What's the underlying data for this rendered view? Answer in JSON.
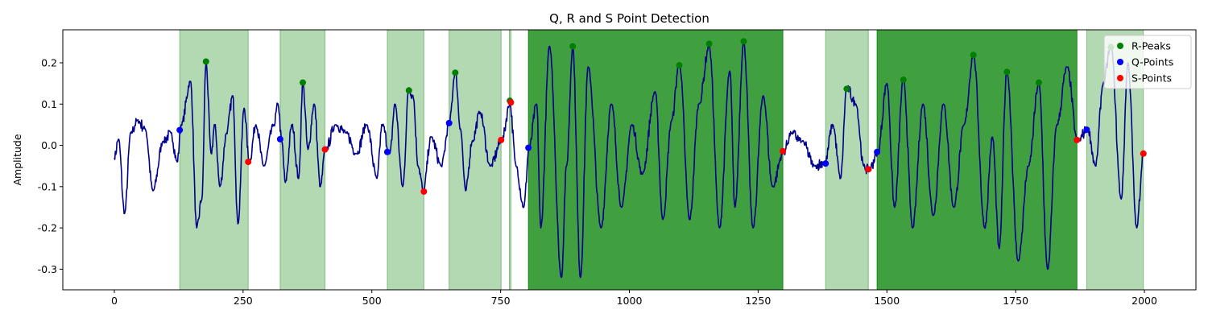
{
  "chart_data": {
    "type": "line",
    "title": "Q, R and S Point Detection",
    "xlabel": "",
    "ylabel": "Amplitude",
    "xlim": [
      -100,
      2100
    ],
    "ylim": [
      -0.35,
      0.28
    ],
    "xticks": [
      0,
      250,
      500,
      750,
      1000,
      1250,
      1500,
      1750,
      2000
    ],
    "yticks": [
      -0.3,
      -0.2,
      -0.1,
      0.0,
      0.1,
      0.2
    ],
    "grid": false,
    "legend_position": "top-right",
    "colors": {
      "signal": "#00008b",
      "r_peaks": "#008000",
      "q_points": "#0000ff",
      "s_points": "#ff0000",
      "region": "#008000"
    },
    "shaded_regions": [
      {
        "start": 127,
        "end": 260,
        "opacity": 0.3
      },
      {
        "start": 322,
        "end": 409,
        "opacity": 0.3
      },
      {
        "start": 530,
        "end": 601,
        "opacity": 0.3
      },
      {
        "start": 650,
        "end": 751,
        "opacity": 0.3
      },
      {
        "start": 767,
        "end": 770,
        "opacity": 0.3
      },
      {
        "start": 804,
        "end": 1298,
        "opacity": 0.75
      },
      {
        "start": 1381,
        "end": 1464,
        "opacity": 0.3
      },
      {
        "start": 1481,
        "end": 1869,
        "opacity": 0.75
      },
      {
        "start": 1888,
        "end": 1998,
        "opacity": 0.3
      }
    ],
    "signal_keypoints": [
      [
        0,
        -0.03
      ],
      [
        8,
        0.015
      ],
      [
        20,
        -0.165
      ],
      [
        32,
        0.03
      ],
      [
        45,
        0.06
      ],
      [
        60,
        0.04
      ],
      [
        75,
        -0.11
      ],
      [
        95,
        0.01
      ],
      [
        110,
        0.03
      ],
      [
        122,
        -0.04
      ],
      [
        130,
        0.05
      ],
      [
        148,
        0.155
      ],
      [
        160,
        -0.2
      ],
      [
        170,
        -0.13
      ],
      [
        178,
        0.2
      ],
      [
        188,
        -0.02
      ],
      [
        195,
        0.05
      ],
      [
        205,
        -0.1
      ],
      [
        218,
        0.03
      ],
      [
        230,
        0.12
      ],
      [
        240,
        -0.19
      ],
      [
        252,
        0.09
      ],
      [
        262,
        -0.04
      ],
      [
        275,
        0.05
      ],
      [
        290,
        -0.05
      ],
      [
        310,
        0.05
      ],
      [
        318,
        0.1
      ],
      [
        325,
        0.01
      ],
      [
        332,
        -0.09
      ],
      [
        345,
        0.05
      ],
      [
        358,
        -0.08
      ],
      [
        366,
        0.15
      ],
      [
        376,
        -0.01
      ],
      [
        388,
        0.1
      ],
      [
        400,
        -0.1
      ],
      [
        410,
        -0.01
      ],
      [
        430,
        0.05
      ],
      [
        450,
        0.03
      ],
      [
        470,
        -0.02
      ],
      [
        490,
        0.05
      ],
      [
        510,
        -0.08
      ],
      [
        520,
        0.05
      ],
      [
        535,
        -0.02
      ],
      [
        545,
        0.1
      ],
      [
        560,
        -0.1
      ],
      [
        572,
        0.14
      ],
      [
        580,
        0.12
      ],
      [
        590,
        -0.05
      ],
      [
        600,
        -0.11
      ],
      [
        615,
        0.02
      ],
      [
        635,
        -0.05
      ],
      [
        650,
        0.05
      ],
      [
        662,
        0.18
      ],
      [
        672,
        0.04
      ],
      [
        682,
        -0.11
      ],
      [
        695,
        0.01
      ],
      [
        710,
        0.08
      ],
      [
        730,
        -0.05
      ],
      [
        752,
        0.01
      ],
      [
        768,
        0.1
      ],
      [
        780,
        -0.05
      ],
      [
        795,
        -0.15
      ],
      [
        805,
        -0.01
      ],
      [
        820,
        0.1
      ],
      [
        828,
        -0.2
      ],
      [
        845,
        0.24
      ],
      [
        868,
        -0.32
      ],
      [
        878,
        -0.05
      ],
      [
        890,
        0.24
      ],
      [
        905,
        -0.32
      ],
      [
        920,
        0.19
      ],
      [
        945,
        -0.2
      ],
      [
        965,
        0.1
      ],
      [
        985,
        -0.15
      ],
      [
        1005,
        0.05
      ],
      [
        1025,
        -0.07
      ],
      [
        1050,
        0.13
      ],
      [
        1065,
        -0.18
      ],
      [
        1082,
        0.06
      ],
      [
        1097,
        0.2
      ],
      [
        1117,
        -0.18
      ],
      [
        1135,
        0.1
      ],
      [
        1155,
        0.24
      ],
      [
        1175,
        -0.2
      ],
      [
        1195,
        0.18
      ],
      [
        1205,
        -0.15
      ],
      [
        1222,
        0.25
      ],
      [
        1240,
        -0.2
      ],
      [
        1260,
        0.12
      ],
      [
        1278,
        -0.1
      ],
      [
        1298,
        -0.02
      ],
      [
        1315,
        0.03
      ],
      [
        1335,
        0.01
      ],
      [
        1360,
        -0.05
      ],
      [
        1380,
        -0.04
      ],
      [
        1395,
        0.05
      ],
      [
        1410,
        -0.08
      ],
      [
        1422,
        0.14
      ],
      [
        1440,
        0.1
      ],
      [
        1455,
        -0.05
      ],
      [
        1465,
        -0.06
      ],
      [
        1482,
        -0.02
      ],
      [
        1500,
        0.15
      ],
      [
        1515,
        -0.15
      ],
      [
        1532,
        0.16
      ],
      [
        1550,
        -0.2
      ],
      [
        1570,
        0.1
      ],
      [
        1590,
        -0.17
      ],
      [
        1610,
        0.1
      ],
      [
        1630,
        -0.15
      ],
      [
        1650,
        0.05
      ],
      [
        1668,
        0.22
      ],
      [
        1690,
        -0.2
      ],
      [
        1705,
        0.02
      ],
      [
        1718,
        -0.25
      ],
      [
        1733,
        0.18
      ],
      [
        1755,
        -0.28
      ],
      [
        1775,
        -0.05
      ],
      [
        1795,
        0.15
      ],
      [
        1812,
        -0.3
      ],
      [
        1830,
        0.05
      ],
      [
        1850,
        0.19
      ],
      [
        1870,
        0.01
      ],
      [
        1890,
        0.04
      ],
      [
        1905,
        -0.05
      ],
      [
        1920,
        0.15
      ],
      [
        1935,
        0.24
      ],
      [
        1955,
        -0.13
      ],
      [
        1968,
        0.2
      ],
      [
        1985,
        -0.2
      ],
      [
        1998,
        -0.02
      ]
    ],
    "series": [
      {
        "name": "R-Peaks",
        "points": [
          [
            178,
            0.203
          ],
          [
            366,
            0.152
          ],
          [
            572,
            0.133
          ],
          [
            662,
            0.176
          ],
          [
            768,
            0.108
          ],
          [
            890,
            0.24
          ],
          [
            1097,
            0.194
          ],
          [
            1155,
            0.246
          ],
          [
            1222,
            0.252
          ],
          [
            1422,
            0.137
          ],
          [
            1532,
            0.159
          ],
          [
            1668,
            0.219
          ],
          [
            1733,
            0.178
          ],
          [
            1795,
            0.152
          ],
          [
            1935,
            0.238
          ]
        ]
      },
      {
        "name": "Q-Points",
        "points": [
          [
            127,
            0.037
          ],
          [
            322,
            0.015
          ],
          [
            530,
            -0.016
          ],
          [
            650,
            0.054
          ],
          [
            804,
            -0.006
          ],
          [
            1381,
            -0.044
          ],
          [
            1481,
            -0.016
          ],
          [
            1888,
            0.038
          ]
        ]
      },
      {
        "name": "S-Points",
        "points": [
          [
            260,
            -0.04
          ],
          [
            409,
            -0.01
          ],
          [
            601,
            -0.112
          ],
          [
            751,
            0.013
          ],
          [
            770,
            0.104
          ],
          [
            1298,
            -0.014
          ],
          [
            1464,
            -0.058
          ],
          [
            1869,
            0.013
          ],
          [
            1998,
            -0.02
          ]
        ]
      }
    ]
  }
}
